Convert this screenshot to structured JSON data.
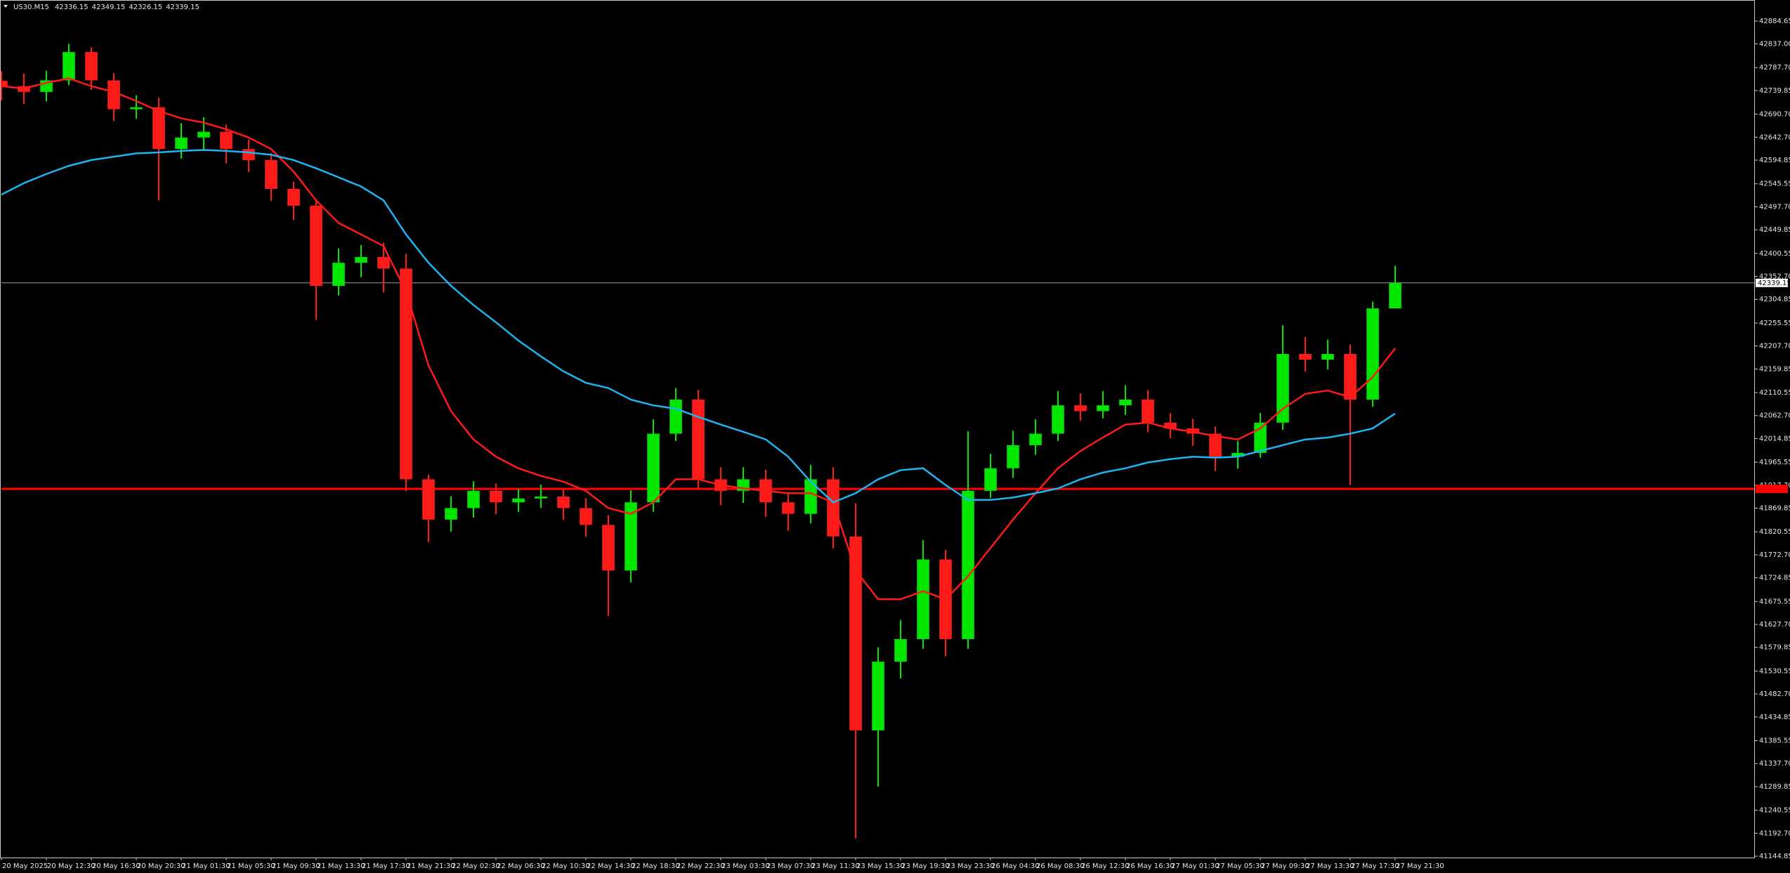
{
  "chart_data": {
    "type": "candlestick",
    "title": "US30.M15",
    "header_values": [
      42336.15,
      42349.15,
      42326.15,
      42339.15
    ],
    "up_color": "#00e600",
    "down_color": "#ff1a1a",
    "candles": {
      "open": [
        42760,
        42749,
        42737,
        42761,
        42820,
        42761,
        42701,
        42705,
        42618,
        42642,
        42654,
        42618,
        42595,
        42535,
        42500,
        42333,
        42381,
        42393,
        42369,
        41930,
        41846,
        41870,
        41906,
        41882,
        41890,
        41894,
        41870,
        41835,
        41740,
        41882,
        42025,
        42096,
        41930,
        41906,
        41930,
        41882,
        41858,
        41930,
        41811,
        41407,
        41550,
        41597,
        41763,
        41597,
        41906,
        41953,
        42001,
        42025,
        42084,
        42072,
        42084,
        42096,
        42048,
        42036,
        42025,
        41977,
        41985,
        42048,
        42191,
        42179,
        42191,
        42096,
        42286
      ],
      "high": [
        42780,
        42775,
        42781,
        42837,
        42830,
        42776,
        42730,
        42725,
        42672,
        42684,
        42669,
        42638,
        42610,
        42550,
        42510,
        42411,
        42418,
        42423,
        42400,
        41940,
        41895,
        41926,
        41921,
        41910,
        41919,
        41909,
        41890,
        41855,
        41907,
        42055,
        42120,
        42116,
        41955,
        41955,
        41950,
        41902,
        41960,
        41955,
        41880,
        41580,
        41637,
        41803,
        41783,
        42030,
        41983,
        42031,
        42055,
        42114,
        42109,
        42114,
        42126,
        42116,
        42068,
        42056,
        42040,
        42010,
        42068,
        42251,
        42226,
        42221,
        42211,
        42300,
        42375
      ],
      "low": [
        42719,
        42712,
        42717,
        42751,
        42741,
        42676,
        42681,
        42511,
        42598,
        42617,
        42588,
        42570,
        42510,
        42470,
        42262,
        42313,
        42351,
        42319,
        41905,
        41799,
        41821,
        41850,
        41857,
        41862,
        41870,
        41845,
        41810,
        41645,
        41715,
        41862,
        42010,
        41910,
        41876,
        41881,
        41852,
        41823,
        41838,
        41786,
        41182,
        41290,
        41515,
        41577,
        41561,
        41577,
        41891,
        41933,
        41981,
        42010,
        42052,
        42057,
        42064,
        42028,
        42016,
        42000,
        41947,
        41952,
        41975,
        42033,
        42154,
        42159,
        41918,
        42081,
        42320
      ],
      "close": [
        42749,
        42737,
        42761,
        42820,
        42761,
        42701,
        42705,
        42618,
        42642,
        42654,
        42618,
        42595,
        42535,
        42500,
        42333,
        42381,
        42393,
        42369,
        41930,
        41846,
        41870,
        41906,
        41882,
        41890,
        41894,
        41870,
        41835,
        41740,
        41882,
        42025,
        42096,
        41930,
        41906,
        41930,
        41882,
        41858,
        41930,
        41811,
        41407,
        41550,
        41597,
        41763,
        41597,
        41906,
        41953,
        42001,
        42025,
        42084,
        42072,
        42084,
        42096,
        42048,
        42036,
        42025,
        41977,
        41985,
        42048,
        42191,
        42179,
        42191,
        42096,
        42286,
        42339
      ]
    },
    "lines": [
      {
        "color": "#ff1a1a",
        "values": [
          42749,
          42744,
          42756,
          42765,
          42749,
          42737,
          42718,
          42697,
          42682,
          42673,
          42659,
          42642,
          42618,
          42571,
          42511,
          42464,
          42440,
          42416,
          42321,
          42167,
          42072,
          42013,
          41977,
          41953,
          41937,
          41925,
          41906,
          41870,
          41858,
          41882,
          41930,
          41930,
          41918,
          41911,
          41906,
          41901,
          41901,
          41882,
          41740,
          41680,
          41680,
          41697,
          41680,
          41728,
          41787,
          41846,
          41901,
          41953,
          41989,
          42017,
          42044,
          42048,
          42036,
          42029,
          42020,
          42013,
          42036,
          42077,
          42108,
          42115,
          42101,
          42143,
          42203
        ]
      },
      {
        "color": "#1eb4f0",
        "values": [
          42523,
          42547,
          42566,
          42583,
          42595,
          42602,
          42609,
          42611,
          42614,
          42616,
          42614,
          42611,
          42606,
          42595,
          42578,
          42559,
          42540,
          42511,
          42440,
          42381,
          42333,
          42293,
          42257,
          42219,
          42186,
          42155,
          42131,
          42120,
          42096,
          42084,
          42077,
          42060,
          42044,
          42029,
          42013,
          41977,
          41925,
          41882,
          41901,
          41930,
          41949,
          41953,
          41918,
          41887,
          41887,
          41892,
          41901,
          41911,
          41930,
          41944,
          41953,
          41965,
          41972,
          41977,
          41975,
          41977,
          41989,
          42001,
          42013,
          42017,
          42025,
          42036,
          42067
        ]
      }
    ],
    "bid_line": {
      "value": 42339.15,
      "color": "#a0a0a0"
    },
    "level_line": {
      "value": 41910,
      "color": "#ff0000"
    },
    "xlim": [
      0,
      78
    ],
    "ylim": [
      41142,
      42927
    ],
    "xticks": [
      {
        "value": 0,
        "label": "20 May 2025"
      },
      {
        "value": 2,
        "label": "20 May 12:30"
      },
      {
        "value": 4,
        "label": "20 May 16:30"
      },
      {
        "value": 6,
        "label": "20 May 20:30"
      },
      {
        "value": 8,
        "label": "21 May 01:30"
      },
      {
        "value": 10,
        "label": "21 May 05:30"
      },
      {
        "value": 12,
        "label": "21 May 09:30"
      },
      {
        "value": 14,
        "label": "21 May 13:30"
      },
      {
        "value": 16,
        "label": "21 May 17:30"
      },
      {
        "value": 18,
        "label": "21 May 21:30"
      },
      {
        "value": 20,
        "label": "22 May 02:30"
      },
      {
        "value": 22,
        "label": "22 May 06:30"
      },
      {
        "value": 24,
        "label": "22 May 10:30"
      },
      {
        "value": 26,
        "label": "22 May 14:30"
      },
      {
        "value": 28,
        "label": "22 May 18:30"
      },
      {
        "value": 30,
        "label": "22 May 22:30"
      },
      {
        "value": 32,
        "label": "23 May 03:30"
      },
      {
        "value": 34,
        "label": "23 May 07:30"
      },
      {
        "value": 36,
        "label": "23 May 11:30"
      },
      {
        "value": 38,
        "label": "23 May 15:30"
      },
      {
        "value": 40,
        "label": "23 May 19:30"
      },
      {
        "value": 42,
        "label": "23 May 23:30"
      },
      {
        "value": 44,
        "label": "26 May 04:30"
      },
      {
        "value": 46,
        "label": "26 May 08:30"
      },
      {
        "value": 48,
        "label": "26 May 12:30"
      },
      {
        "value": 50,
        "label": "26 May 16:30"
      },
      {
        "value": 52,
        "label": "27 May 01:30"
      },
      {
        "value": 54,
        "label": "27 May 05:30"
      },
      {
        "value": 56,
        "label": "27 May 09:30"
      },
      {
        "value": 58,
        "label": "27 May 13:30"
      },
      {
        "value": 60,
        "label": "27 May 17:30"
      },
      {
        "value": 62,
        "label": "27 May 21:30"
      }
    ],
    "yticks": [
      42884.65,
      {
        "value": 42837,
        "label": "42837.00"
      },
      {
        "value": 42787.7,
        "label": "42787.70"
      },
      42739.85,
      {
        "value": 42690.7,
        "label": "42690.70"
      },
      {
        "value": 42642.7,
        "label": "42642.70"
      },
      42594.85,
      42545.55,
      {
        "value": 42497.7,
        "label": "42497.70"
      },
      42449.85,
      42400.55,
      {
        "value": 42352.7,
        "label": "42352.70"
      },
      42304.85,
      42255.55,
      {
        "value": 42207.7,
        "label": "42207.70"
      },
      42159.85,
      42110.55,
      {
        "value": 42062.7,
        "label": "42062.70"
      },
      42014.85,
      41965.55,
      {
        "value": 41917.7,
        "label": "41917.70"
      },
      41869.85,
      41820.55,
      {
        "value": 41772.7,
        "label": "41772.70"
      },
      41724.85,
      41675.55,
      {
        "value": 41627.7,
        "label": "41627.70"
      },
      41579.85,
      41530.55,
      {
        "value": 41482.7,
        "label": "41482.70"
      },
      41434.85,
      41385.55,
      {
        "value": 41337.7,
        "label": "41337.70"
      },
      41289.85,
      41240.55,
      {
        "value": 41192.7,
        "label": "41192.70"
      },
      41144.85
    ]
  }
}
